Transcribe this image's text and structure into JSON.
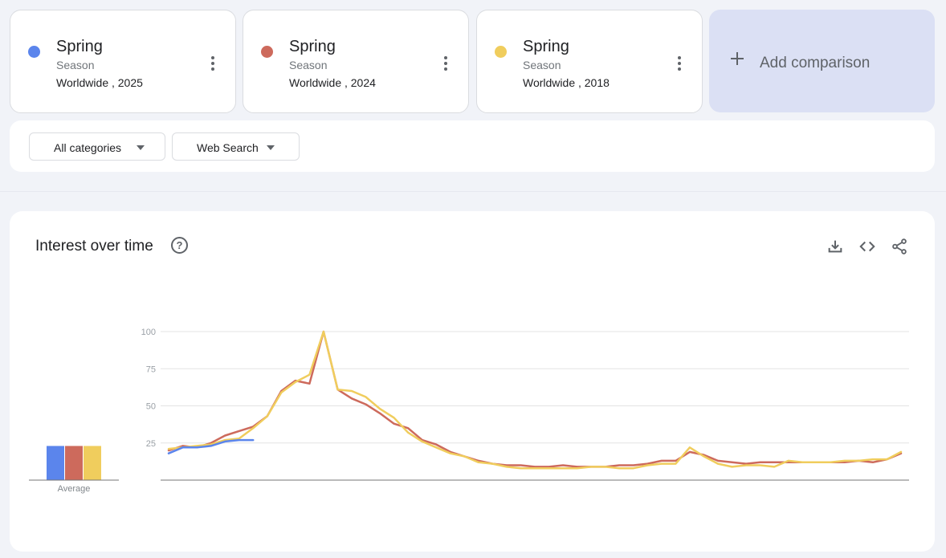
{
  "terms": [
    {
      "name": "Spring",
      "type": "Season",
      "region": "Worldwide , 2025",
      "color": "#5b85ec"
    },
    {
      "name": "Spring",
      "type": "Season",
      "region": "Worldwide , 2024",
      "color": "#cd6a5c"
    },
    {
      "name": "Spring",
      "type": "Season",
      "region": "Worldwide , 2018",
      "color": "#f0cd5d"
    }
  ],
  "add_comparison": {
    "label": "Add comparison"
  },
  "filters": {
    "category": "All categories",
    "search_type": "Web Search"
  },
  "chart": {
    "title": "Interest over time",
    "help_symbol": "?",
    "actions": [
      "download-icon",
      "embed-icon",
      "share-icon"
    ]
  },
  "chart_data": {
    "type": "line",
    "ylim": [
      0,
      100
    ],
    "yticks": [
      "100",
      "75",
      "50",
      "25"
    ],
    "average_label": "Average",
    "averages": [
      23,
      23,
      23
    ],
    "grid": true,
    "series": [
      {
        "name": "Spring",
        "color": "#5b85ec",
        "values": [
          18,
          22,
          22,
          23,
          26,
          27,
          27
        ]
      },
      {
        "name": "Spring",
        "color": "#cd6a5c",
        "values": [
          20,
          23,
          22,
          25,
          30,
          33,
          36,
          43,
          60,
          67,
          65,
          100,
          61,
          55,
          51,
          45,
          38,
          35,
          27,
          24,
          19,
          16,
          13,
          11,
          10,
          10,
          9,
          9,
          10,
          9,
          9,
          9,
          10,
          10,
          11,
          13,
          13,
          19,
          17,
          13,
          12,
          11,
          12,
          12,
          12,
          12,
          12,
          12,
          12,
          13,
          12,
          14,
          18
        ]
      },
      {
        "name": "Spring",
        "color": "#f0cd5d",
        "values": [
          21,
          22,
          23,
          24,
          27,
          28,
          35,
          43,
          59,
          66,
          71,
          100,
          61,
          60,
          56,
          48,
          42,
          32,
          26,
          22,
          18,
          16,
          12,
          11,
          9,
          8,
          8,
          8,
          8,
          8,
          9,
          9,
          8,
          8,
          10,
          11,
          11,
          22,
          16,
          11,
          9,
          10,
          10,
          9,
          13,
          12,
          12,
          12,
          13,
          13,
          14,
          14,
          19
        ]
      }
    ]
  }
}
